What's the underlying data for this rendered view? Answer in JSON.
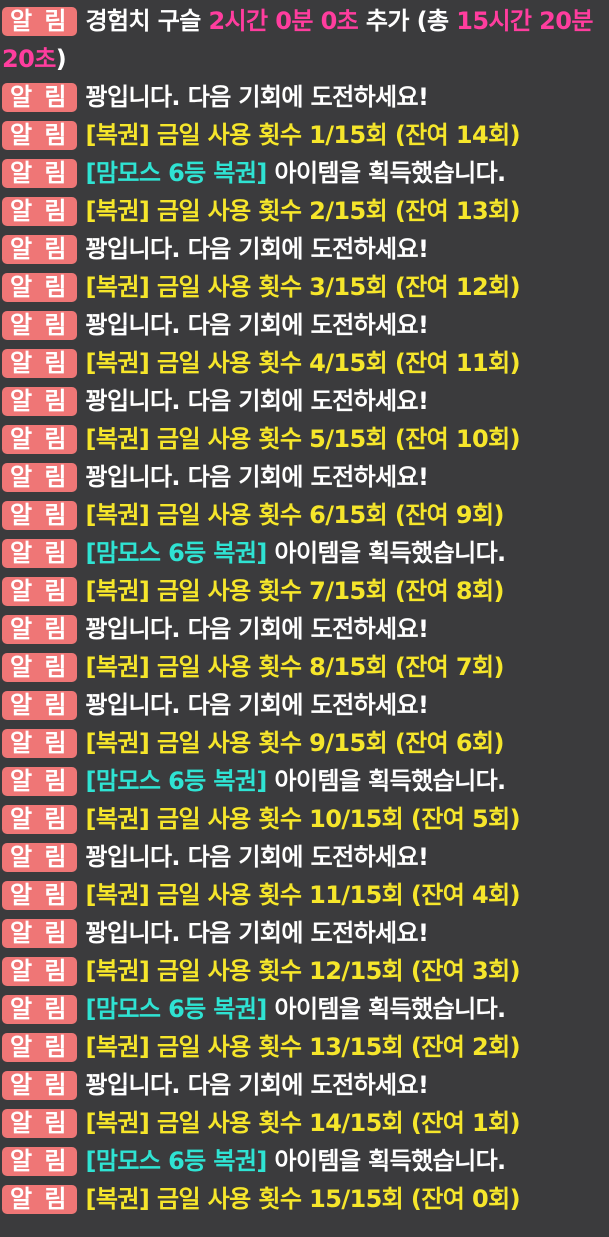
{
  "messages": [
    {
      "badge": "알 림",
      "segments": [
        {
          "text": "경험치 구슬 ",
          "color": "#ffffff"
        },
        {
          "text": "2시간 0분 0초",
          "color": "#ff3d9e"
        },
        {
          "text": " 추가 (총 ",
          "color": "#ffffff"
        },
        {
          "text": "15시간 20분 20초",
          "color": "#ff3d9e"
        },
        {
          "text": ")",
          "color": "#ffffff"
        }
      ]
    },
    {
      "badge": "알 림",
      "segments": [
        {
          "text": "꽝입니다. 다음 기회에 도전하세요!",
          "color": "#ffffff"
        }
      ]
    },
    {
      "badge": "알 림",
      "segments": [
        {
          "text": "[복권] 금일 사용 횟수 1/15회 (잔여 14회)",
          "color": "#f6e62b"
        }
      ]
    },
    {
      "badge": "알 림",
      "segments": [
        {
          "text": "[맘모스 6등 복권]",
          "color": "#2fe3d3"
        },
        {
          "text": " 아이템을 획득했습니다.",
          "color": "#ffffff"
        }
      ]
    },
    {
      "badge": "알 림",
      "segments": [
        {
          "text": "[복권] 금일 사용 횟수 2/15회 (잔여 13회)",
          "color": "#f6e62b"
        }
      ]
    },
    {
      "badge": "알 림",
      "segments": [
        {
          "text": "꽝입니다. 다음 기회에 도전하세요!",
          "color": "#ffffff"
        }
      ]
    },
    {
      "badge": "알 림",
      "segments": [
        {
          "text": "[복권] 금일 사용 횟수 3/15회 (잔여 12회)",
          "color": "#f6e62b"
        }
      ]
    },
    {
      "badge": "알 림",
      "segments": [
        {
          "text": "꽝입니다. 다음 기회에 도전하세요!",
          "color": "#ffffff"
        }
      ]
    },
    {
      "badge": "알 림",
      "segments": [
        {
          "text": "[복권] 금일 사용 횟수 4/15회 (잔여 11회)",
          "color": "#f6e62b"
        }
      ]
    },
    {
      "badge": "알 림",
      "segments": [
        {
          "text": "꽝입니다. 다음 기회에 도전하세요!",
          "color": "#ffffff"
        }
      ]
    },
    {
      "badge": "알 림",
      "segments": [
        {
          "text": "[복권] 금일 사용 횟수 5/15회 (잔여 10회)",
          "color": "#f6e62b"
        }
      ]
    },
    {
      "badge": "알 림",
      "segments": [
        {
          "text": "꽝입니다. 다음 기회에 도전하세요!",
          "color": "#ffffff"
        }
      ]
    },
    {
      "badge": "알 림",
      "segments": [
        {
          "text": "[복권] 금일 사용 횟수 6/15회 (잔여 9회)",
          "color": "#f6e62b"
        }
      ]
    },
    {
      "badge": "알 림",
      "segments": [
        {
          "text": "[맘모스 6등 복권]",
          "color": "#2fe3d3"
        },
        {
          "text": " 아이템을 획득했습니다.",
          "color": "#ffffff"
        }
      ]
    },
    {
      "badge": "알 림",
      "segments": [
        {
          "text": "[복권] 금일 사용 횟수 7/15회 (잔여 8회)",
          "color": "#f6e62b"
        }
      ]
    },
    {
      "badge": "알 림",
      "segments": [
        {
          "text": "꽝입니다. 다음 기회에 도전하세요!",
          "color": "#ffffff"
        }
      ]
    },
    {
      "badge": "알 림",
      "segments": [
        {
          "text": "[복권] 금일 사용 횟수 8/15회 (잔여 7회)",
          "color": "#f6e62b"
        }
      ]
    },
    {
      "badge": "알 림",
      "segments": [
        {
          "text": "꽝입니다. 다음 기회에 도전하세요!",
          "color": "#ffffff"
        }
      ]
    },
    {
      "badge": "알 림",
      "segments": [
        {
          "text": "[복권] 금일 사용 횟수 9/15회 (잔여 6회)",
          "color": "#f6e62b"
        }
      ]
    },
    {
      "badge": "알 림",
      "segments": [
        {
          "text": "[맘모스 6등 복권]",
          "color": "#2fe3d3"
        },
        {
          "text": " 아이템을 획득했습니다.",
          "color": "#ffffff"
        }
      ]
    },
    {
      "badge": "알 림",
      "segments": [
        {
          "text": "[복권] 금일 사용 횟수 10/15회 (잔여 5회)",
          "color": "#f6e62b"
        }
      ]
    },
    {
      "badge": "알 림",
      "segments": [
        {
          "text": "꽝입니다. 다음 기회에 도전하세요!",
          "color": "#ffffff"
        }
      ]
    },
    {
      "badge": "알 림",
      "segments": [
        {
          "text": "[복권] 금일 사용 횟수 11/15회 (잔여 4회)",
          "color": "#f6e62b"
        }
      ]
    },
    {
      "badge": "알 림",
      "segments": [
        {
          "text": "꽝입니다. 다음 기회에 도전하세요!",
          "color": "#ffffff"
        }
      ]
    },
    {
      "badge": "알 림",
      "segments": [
        {
          "text": "[복권] 금일 사용 횟수 12/15회 (잔여 3회)",
          "color": "#f6e62b"
        }
      ]
    },
    {
      "badge": "알 림",
      "segments": [
        {
          "text": "[맘모스 6등 복권]",
          "color": "#2fe3d3"
        },
        {
          "text": " 아이템을 획득했습니다.",
          "color": "#ffffff"
        }
      ]
    },
    {
      "badge": "알 림",
      "segments": [
        {
          "text": "[복권] 금일 사용 횟수 13/15회 (잔여 2회)",
          "color": "#f6e62b"
        }
      ]
    },
    {
      "badge": "알 림",
      "segments": [
        {
          "text": "꽝입니다. 다음 기회에 도전하세요!",
          "color": "#ffffff"
        }
      ]
    },
    {
      "badge": "알 림",
      "segments": [
        {
          "text": "[복권] 금일 사용 횟수 14/15회 (잔여 1회)",
          "color": "#f6e62b"
        }
      ]
    },
    {
      "badge": "알 림",
      "segments": [
        {
          "text": "[맘모스 6등 복권]",
          "color": "#2fe3d3"
        },
        {
          "text": " 아이템을 획득했습니다.",
          "color": "#ffffff"
        }
      ]
    },
    {
      "badge": "알 림",
      "segments": [
        {
          "text": "[복권] 금일 사용 횟수 15/15회 (잔여 0회)",
          "color": "#f6e62b"
        }
      ]
    }
  ]
}
